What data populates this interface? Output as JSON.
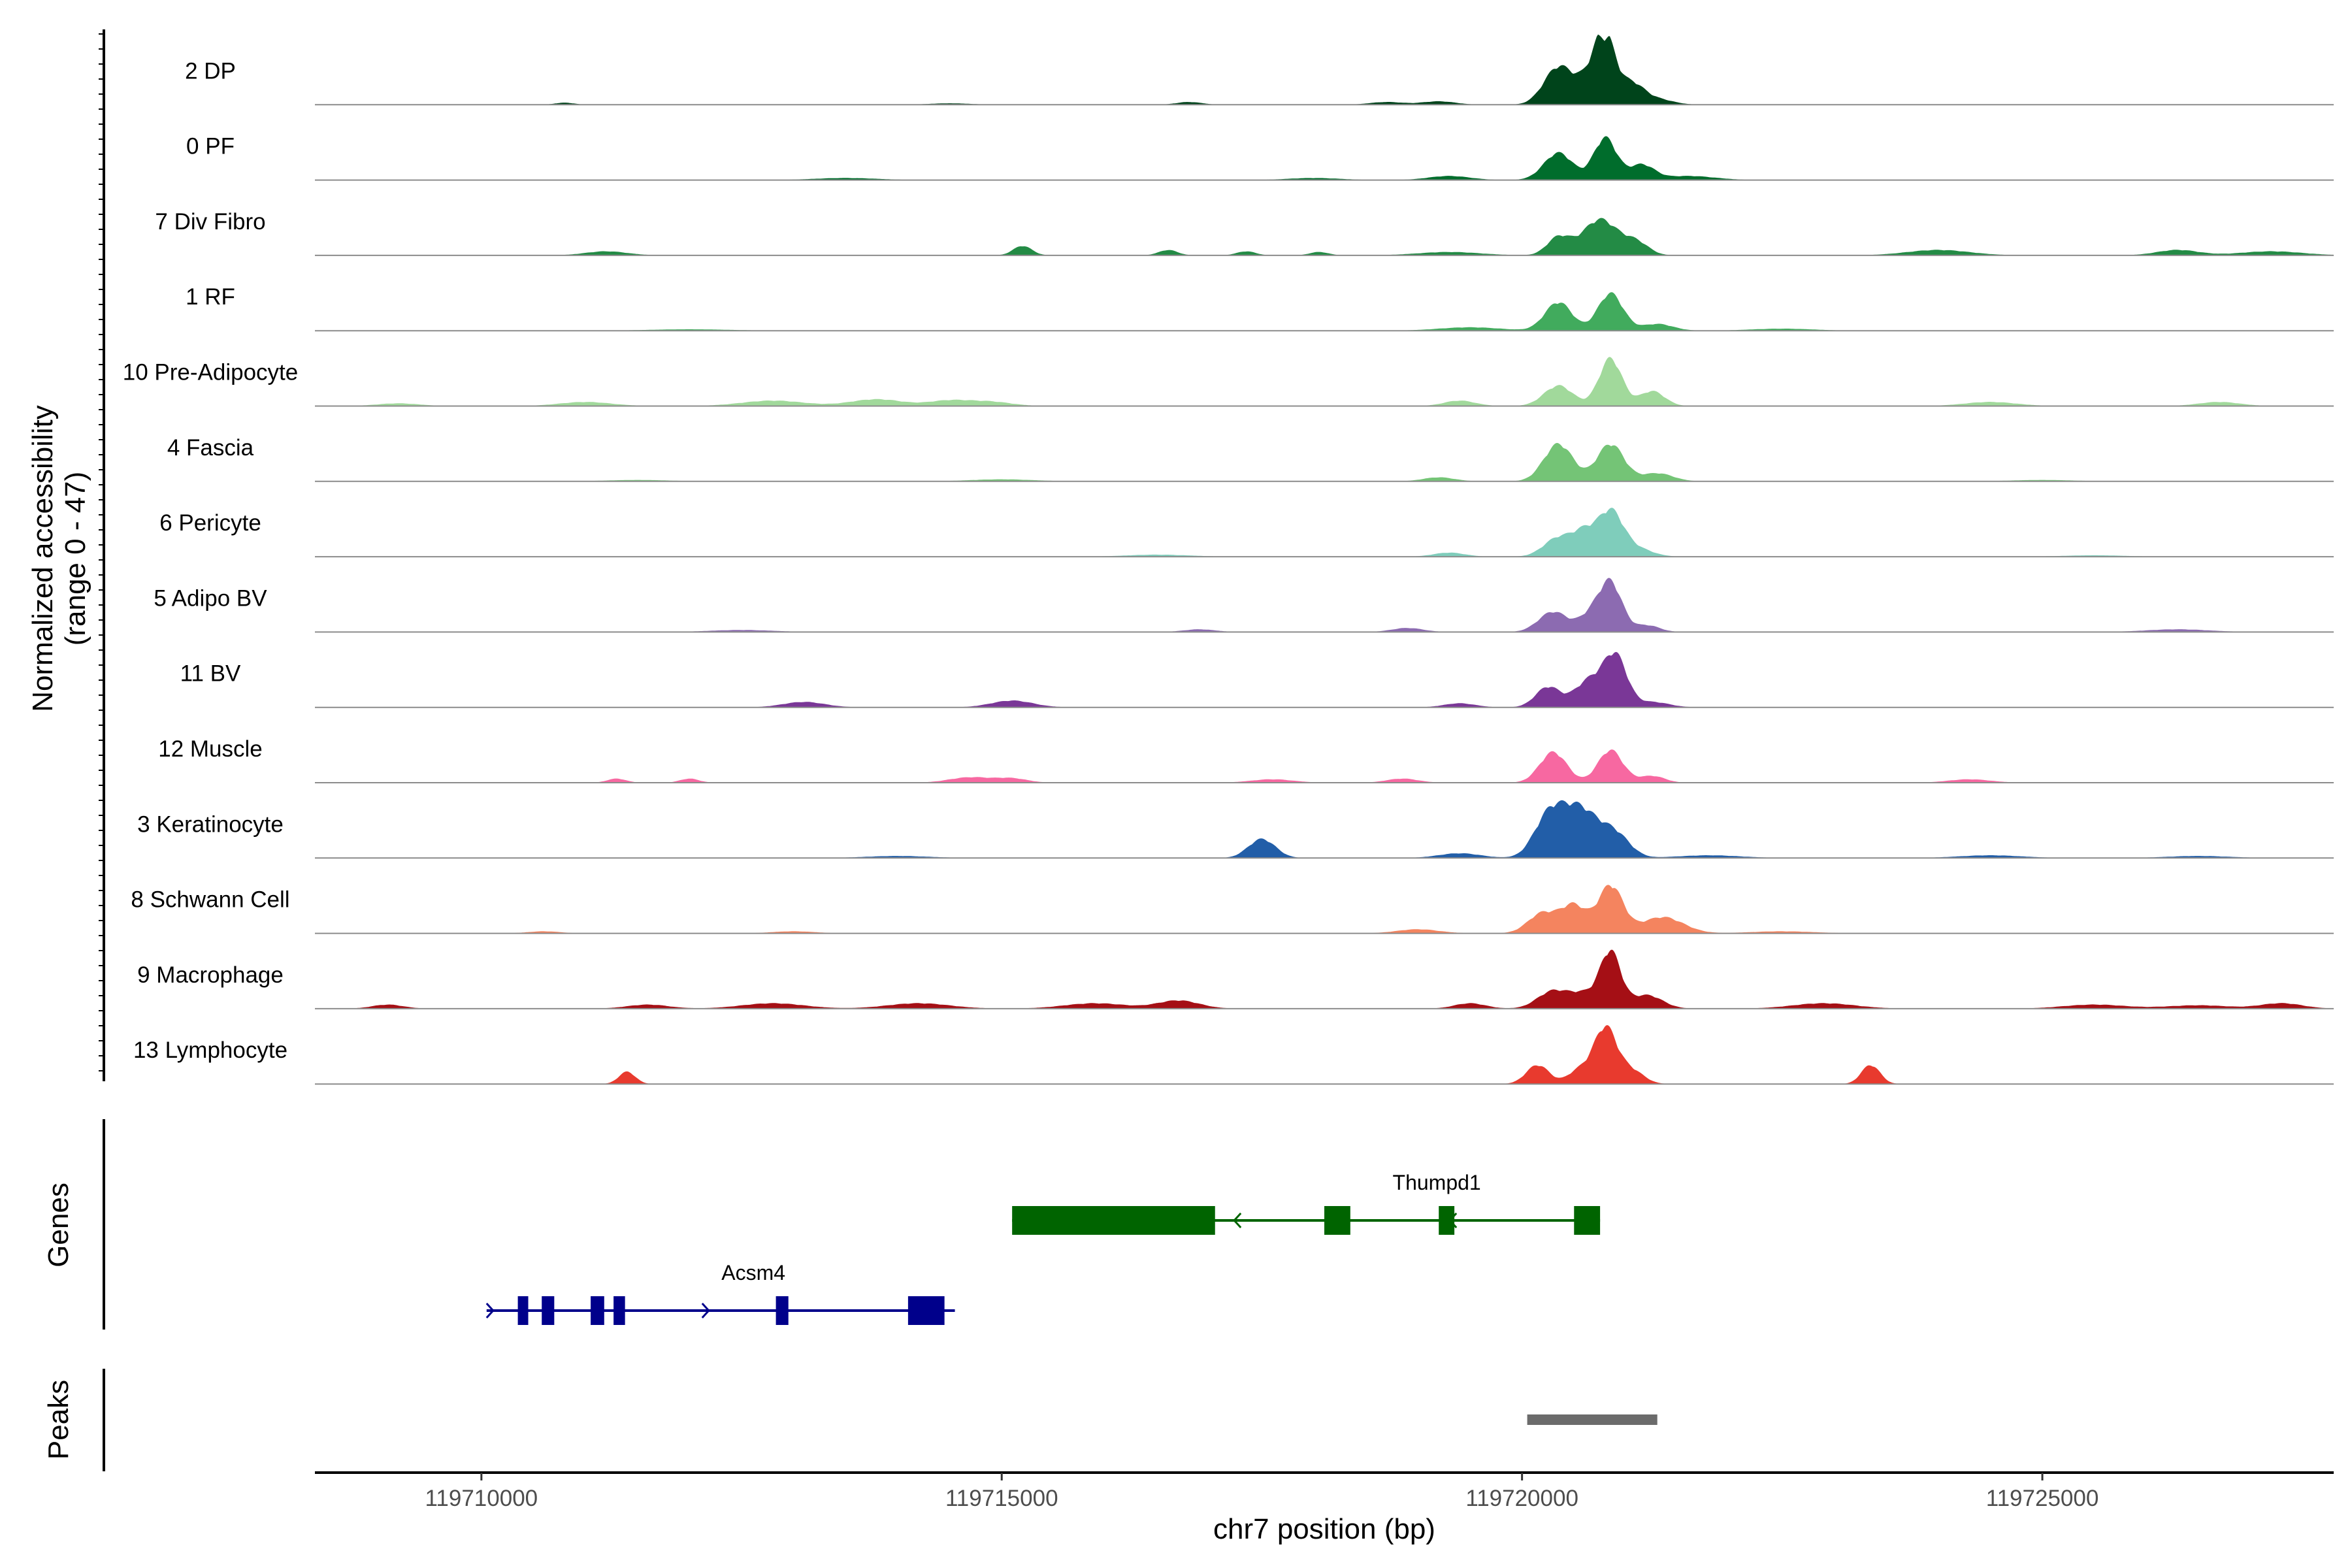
{
  "chart_data": {
    "type": "area",
    "subtype": "genome-coverage-tracks",
    "xlabel": "chr7 position (bp)",
    "ylabel_line1": "Normalized accessibility",
    "ylabel_line2": "(range 0 - 47)",
    "y_range": [
      0,
      47
    ],
    "xlim": [
      119708400,
      119727800
    ],
    "x_ticks": [
      119710000,
      119715000,
      119720000,
      119725000
    ],
    "x_tick_labels": [
      "119710000",
      "119715000",
      "119720000",
      "119725000"
    ],
    "tracks": [
      {
        "name": "2 DP",
        "color": "#00441b",
        "peaks": [
          [
            119720350,
            0.55,
            140
          ],
          [
            119720700,
            0.45,
            140
          ],
          [
            119720800,
            0.72,
            95
          ],
          [
            119721050,
            0.3,
            120
          ],
          [
            119721300,
            0.08,
            150
          ],
          [
            119719200,
            0.05,
            160
          ],
          [
            119716800,
            0.04,
            120
          ],
          [
            119718700,
            0.04,
            160
          ],
          [
            119710800,
            0.03,
            90
          ],
          [
            119714500,
            0.02,
            200
          ]
        ]
      },
      {
        "name": "0 PF",
        "color": "#006d2c",
        "peaks": [
          [
            119720350,
            0.4,
            140
          ],
          [
            119720800,
            0.62,
            110
          ],
          [
            119721150,
            0.22,
            120
          ],
          [
            119719300,
            0.06,
            200
          ],
          [
            119721600,
            0.06,
            250
          ],
          [
            119718000,
            0.03,
            250
          ],
          [
            119713500,
            0.03,
            300
          ]
        ]
      },
      {
        "name": "7 Div Fibro",
        "color": "#238b45",
        "peaks": [
          [
            119720350,
            0.26,
            110
          ],
          [
            119720750,
            0.53,
            170
          ],
          [
            119721100,
            0.18,
            120
          ],
          [
            119715200,
            0.14,
            90
          ],
          [
            119716600,
            0.08,
            90
          ],
          [
            119717350,
            0.06,
            90
          ],
          [
            119718050,
            0.05,
            90
          ],
          [
            119711200,
            0.06,
            200
          ],
          [
            119724000,
            0.08,
            300
          ],
          [
            119726300,
            0.08,
            200
          ],
          [
            119727200,
            0.06,
            300
          ],
          [
            119719300,
            0.05,
            300
          ]
        ]
      },
      {
        "name": "1 RF",
        "color": "#41ab5d",
        "peaks": [
          [
            119720350,
            0.42,
            130
          ],
          [
            119720850,
            0.55,
            120
          ],
          [
            119721300,
            0.1,
            150
          ],
          [
            119719500,
            0.05,
            300
          ],
          [
            119722500,
            0.03,
            300
          ],
          [
            119712000,
            0.02,
            400
          ]
        ]
      },
      {
        "name": "10 Pre-Adipocyte",
        "color": "#a1d99b",
        "peaks": [
          [
            119720350,
            0.3,
            140
          ],
          [
            119720850,
            0.7,
            110
          ],
          [
            119721250,
            0.22,
            120
          ],
          [
            119719400,
            0.08,
            150
          ],
          [
            119712800,
            0.08,
            300
          ],
          [
            119713800,
            0.1,
            250
          ],
          [
            119714500,
            0.08,
            200
          ],
          [
            119714900,
            0.06,
            200
          ],
          [
            119711000,
            0.06,
            250
          ],
          [
            119709200,
            0.04,
            200
          ],
          [
            119724500,
            0.06,
            250
          ],
          [
            119726700,
            0.06,
            200
          ]
        ]
      },
      {
        "name": "4 Fascia",
        "color": "#74c476",
        "peaks": [
          [
            119720350,
            0.55,
            140
          ],
          [
            119720850,
            0.55,
            130
          ],
          [
            119721300,
            0.12,
            150
          ],
          [
            119719200,
            0.06,
            150
          ],
          [
            119715000,
            0.03,
            300
          ],
          [
            119725000,
            0.02,
            300
          ],
          [
            119711500,
            0.02,
            300
          ]
        ]
      },
      {
        "name": "6 Pericyte",
        "color": "#7fcdbb",
        "peaks": [
          [
            119720350,
            0.28,
            140
          ],
          [
            119720600,
            0.32,
            110
          ],
          [
            119720850,
            0.65,
            120
          ],
          [
            119721100,
            0.12,
            150
          ],
          [
            119719300,
            0.06,
            150
          ],
          [
            119716500,
            0.03,
            300
          ],
          [
            119725500,
            0.02,
            300
          ]
        ]
      },
      {
        "name": "5 Adipo BV",
        "color": "#8c6bb1",
        "peaks": [
          [
            119720300,
            0.3,
            140
          ],
          [
            119720650,
            0.22,
            110
          ],
          [
            119720850,
            0.72,
            110
          ],
          [
            119721200,
            0.1,
            120
          ],
          [
            119718900,
            0.06,
            150
          ],
          [
            119716900,
            0.04,
            150
          ],
          [
            119712500,
            0.03,
            300
          ],
          [
            119726300,
            0.04,
            300
          ]
        ]
      },
      {
        "name": "11 BV",
        "color": "#7a3797",
        "peaks": [
          [
            119720250,
            0.3,
            120
          ],
          [
            119720650,
            0.4,
            140
          ],
          [
            119720900,
            0.72,
            110
          ],
          [
            119721250,
            0.08,
            160
          ],
          [
            119713100,
            0.08,
            200
          ],
          [
            119715100,
            0.1,
            200
          ],
          [
            119719400,
            0.06,
            150
          ]
        ]
      },
      {
        "name": "12 Muscle",
        "color": "#f768a1",
        "peaks": [
          [
            119720300,
            0.45,
            130
          ],
          [
            119720850,
            0.48,
            120
          ],
          [
            119721250,
            0.1,
            120
          ],
          [
            119711300,
            0.06,
            90
          ],
          [
            119712000,
            0.06,
            90
          ],
          [
            119714700,
            0.08,
            200
          ],
          [
            119715100,
            0.06,
            150
          ],
          [
            119717600,
            0.05,
            200
          ],
          [
            119718850,
            0.06,
            150
          ],
          [
            119724300,
            0.05,
            200
          ]
        ]
      },
      {
        "name": "3 Keratinocyte",
        "color": "#225ea8",
        "peaks": [
          [
            119720250,
            0.55,
            140
          ],
          [
            119720550,
            0.72,
            180
          ],
          [
            119720900,
            0.32,
            140
          ],
          [
            119719400,
            0.07,
            200
          ],
          [
            119717500,
            0.28,
            130
          ],
          [
            119721800,
            0.04,
            300
          ],
          [
            119714000,
            0.03,
            300
          ],
          [
            119724500,
            0.04,
            300
          ],
          [
            119726500,
            0.03,
            300
          ]
        ]
      },
      {
        "name": "8 Schwann Cell",
        "color": "#f4845f",
        "peaks": [
          [
            119720200,
            0.3,
            140
          ],
          [
            119720500,
            0.4,
            120
          ],
          [
            119720850,
            0.7,
            120
          ],
          [
            119721350,
            0.24,
            200
          ],
          [
            119719000,
            0.06,
            200
          ],
          [
            119710600,
            0.03,
            150
          ],
          [
            119713000,
            0.03,
            200
          ],
          [
            119722500,
            0.03,
            300
          ]
        ]
      },
      {
        "name": "9 Macrophage",
        "color": "#a50f15",
        "peaks": [
          [
            119720300,
            0.26,
            150
          ],
          [
            119720600,
            0.2,
            130
          ],
          [
            119720850,
            0.82,
            100
          ],
          [
            119721200,
            0.2,
            150
          ],
          [
            119719500,
            0.08,
            150
          ],
          [
            119716700,
            0.12,
            200
          ],
          [
            119714200,
            0.08,
            300
          ],
          [
            119715900,
            0.08,
            300
          ],
          [
            119712800,
            0.08,
            300
          ],
          [
            119709100,
            0.06,
            150
          ],
          [
            119711600,
            0.06,
            200
          ],
          [
            119722900,
            0.08,
            300
          ],
          [
            119727300,
            0.08,
            200
          ],
          [
            119725500,
            0.06,
            300
          ],
          [
            119726500,
            0.05,
            300
          ]
        ]
      },
      {
        "name": "13 Lymphocyte",
        "color": "#e83a2e",
        "peaks": [
          [
            119720150,
            0.28,
            110
          ],
          [
            119720550,
            0.2,
            110
          ],
          [
            119720800,
            0.82,
            110
          ],
          [
            119721050,
            0.2,
            120
          ],
          [
            119711400,
            0.18,
            80
          ],
          [
            119723350,
            0.28,
            90
          ]
        ]
      }
    ],
    "genes": [
      {
        "name": "Acsm4",
        "strand": "+",
        "start": 119710050,
        "end": 119714550,
        "exons": [
          [
            119710350,
            119710450
          ],
          [
            119710580,
            119710700
          ],
          [
            119711050,
            119711180
          ],
          [
            119711270,
            119711380
          ],
          [
            119712830,
            119712950
          ],
          [
            119714100,
            119714450
          ]
        ]
      },
      {
        "name": "Thumpd1",
        "strand": "-",
        "start": 119715100,
        "end": 119720750,
        "exons": [
          [
            119715100,
            119717050
          ],
          [
            119718100,
            119718350
          ],
          [
            119719200,
            119719350
          ],
          [
            119720500,
            119720750
          ]
        ]
      }
    ],
    "genes_track_label": "Genes",
    "peaks_track_label": "Peaks",
    "peak_regions": [
      [
        119720050,
        119721300
      ]
    ],
    "colors": {
      "gene": "#006400",
      "gene_alt": "#00008b",
      "peak": "#6b6b6b",
      "axis": "#000000",
      "baseline": "#8c8c8c"
    }
  }
}
